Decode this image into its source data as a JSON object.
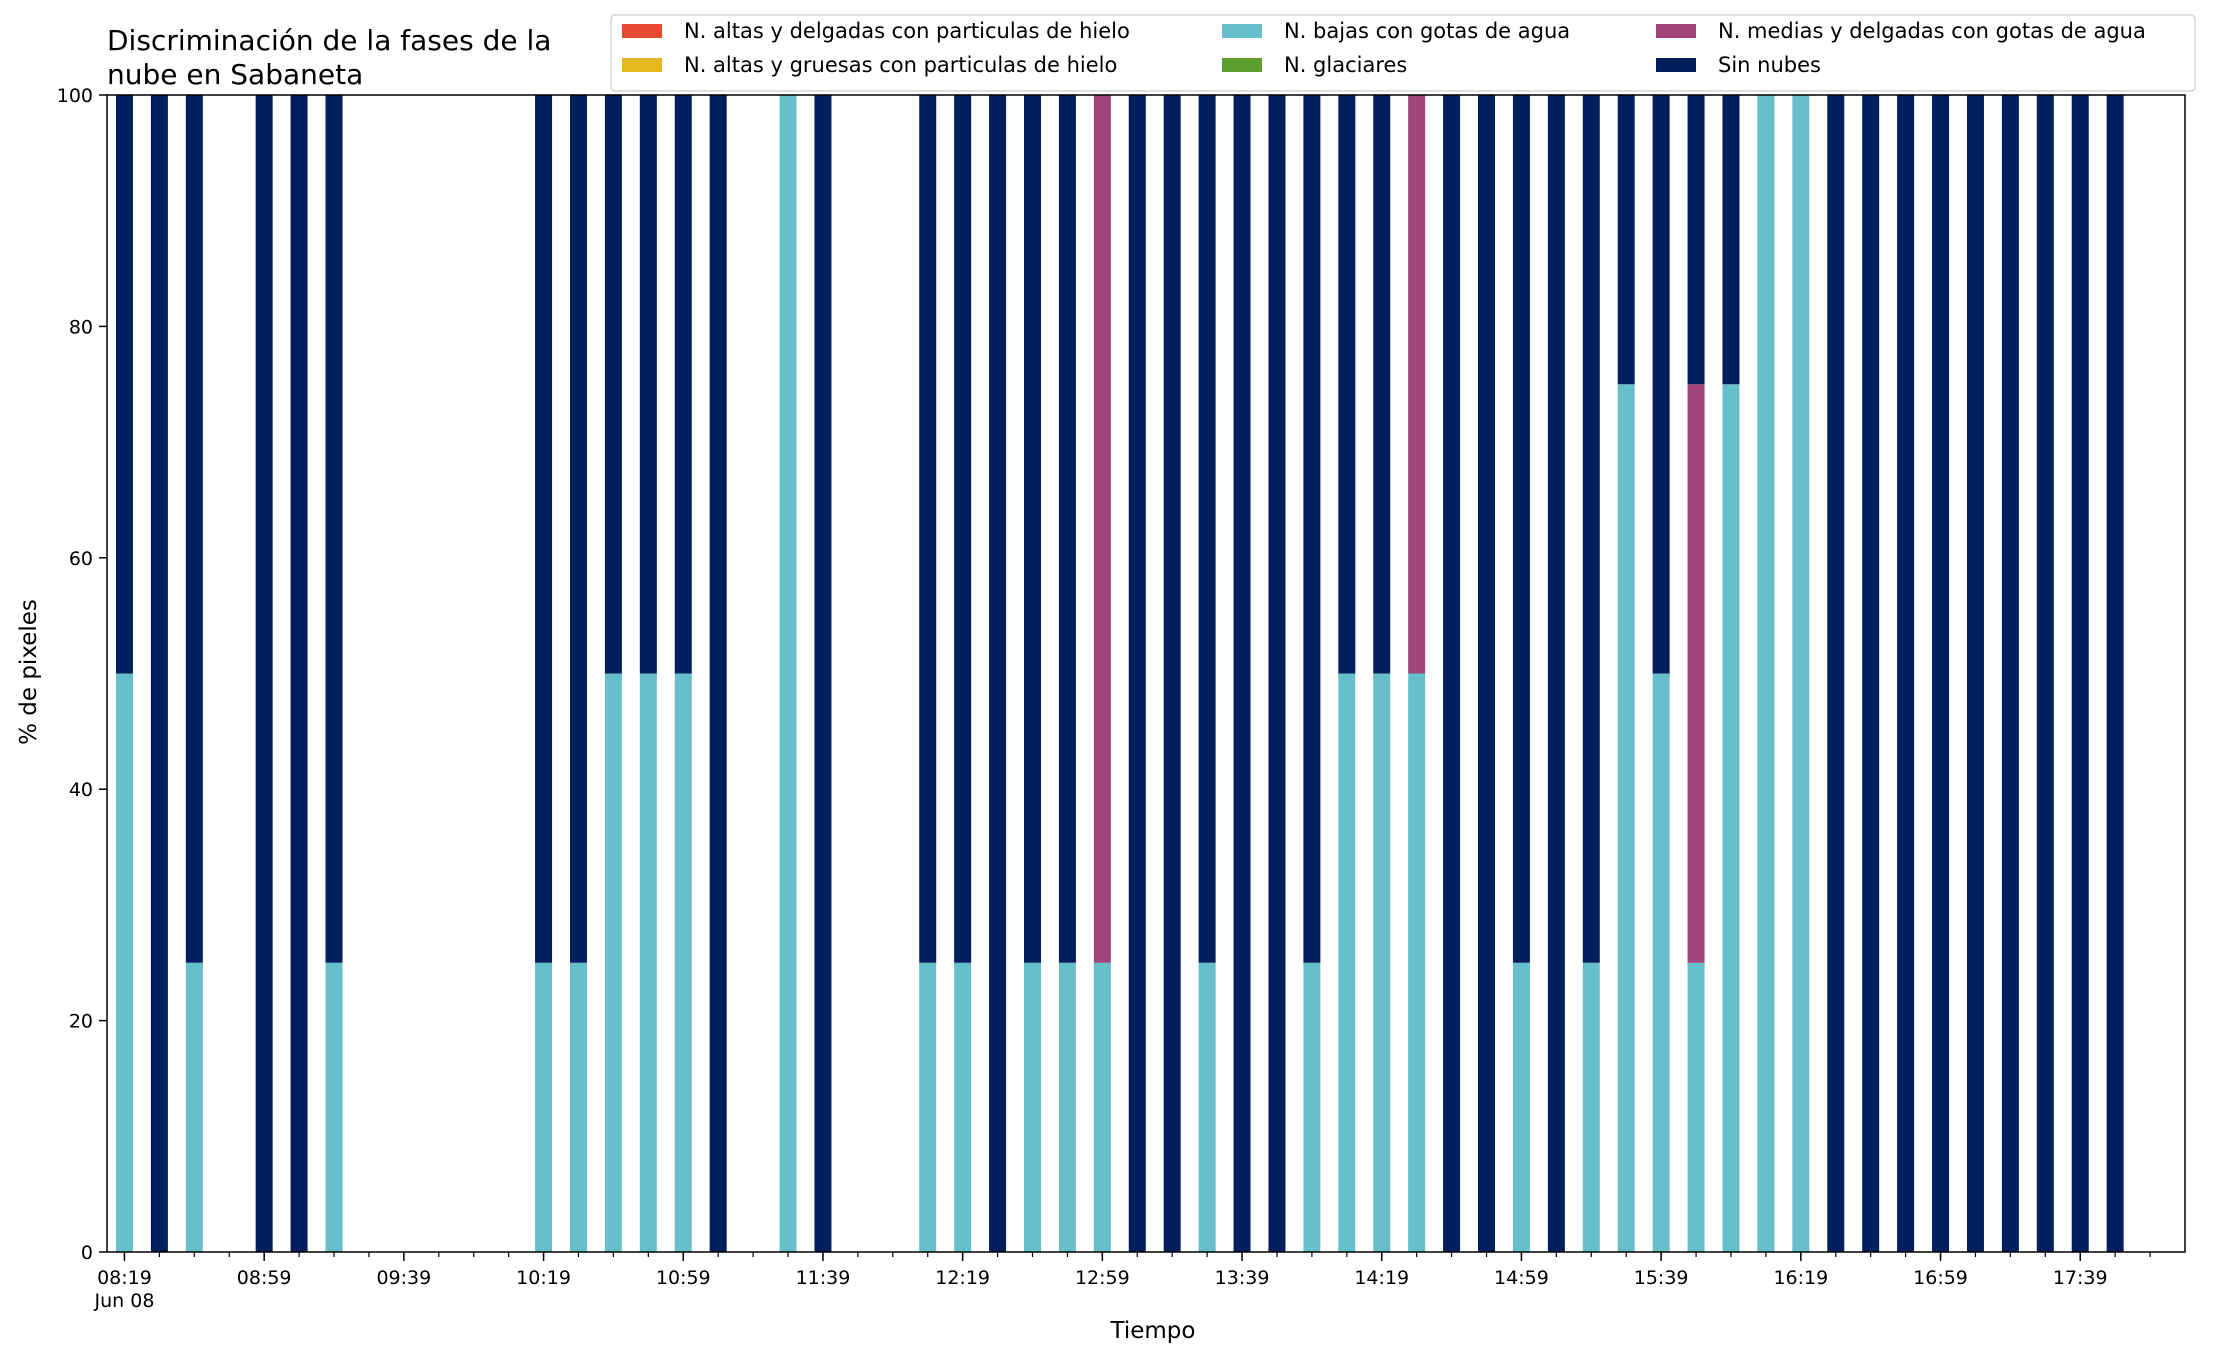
{
  "chart_data": {
    "type": "bar",
    "stacked": true,
    "title": "Discriminación de la fases de la\nnube en Sabaneta",
    "xlabel": "Tiempo",
    "ylabel": "% de pixeles",
    "ylim": [
      0,
      100
    ],
    "y_ticks": [
      0,
      20,
      40,
      60,
      80,
      100
    ],
    "grid": false,
    "legend_position": "top-right",
    "x_range": [
      "08:14",
      "18:09"
    ],
    "x_tick_labels": [
      {
        "time": "08:19",
        "label": "08:19",
        "sublabel": "Jun 08"
      },
      {
        "time": "08:59",
        "label": "08:59"
      },
      {
        "time": "09:39",
        "label": "09:39"
      },
      {
        "time": "10:19",
        "label": "10:19"
      },
      {
        "time": "10:59",
        "label": "10:59"
      },
      {
        "time": "11:39",
        "label": "11:39"
      },
      {
        "time": "12:19",
        "label": "12:19"
      },
      {
        "time": "12:59",
        "label": "12:59"
      },
      {
        "time": "13:39",
        "label": "13:39"
      },
      {
        "time": "14:19",
        "label": "14:19"
      },
      {
        "time": "14:59",
        "label": "14:59"
      },
      {
        "time": "15:39",
        "label": "15:39"
      },
      {
        "time": "16:19",
        "label": "16:19"
      },
      {
        "time": "16:59",
        "label": "16:59"
      },
      {
        "time": "17:39",
        "label": "17:39"
      }
    ],
    "x": [
      "08:19",
      "08:29",
      "08:39",
      "08:59",
      "09:09",
      "09:19",
      "10:19",
      "10:29",
      "10:39",
      "10:49",
      "10:59",
      "11:09",
      "11:29",
      "11:39",
      "12:09",
      "12:19",
      "12:29",
      "12:39",
      "12:49",
      "12:59",
      "13:09",
      "13:19",
      "13:29",
      "13:39",
      "13:49",
      "13:59",
      "14:09",
      "14:19",
      "14:29",
      "14:39",
      "14:49",
      "14:59",
      "15:09",
      "15:19",
      "15:29",
      "15:39",
      "15:49",
      "15:59",
      "16:09",
      "16:19",
      "16:29",
      "16:39",
      "16:49",
      "16:59",
      "17:09",
      "17:19",
      "17:29",
      "17:39",
      "17:49"
    ],
    "series": [
      {
        "name": "N. altas y delgadas con particulas de hielo",
        "color": "#e84a2f",
        "values": [
          0,
          0,
          0,
          0,
          0,
          0,
          0,
          0,
          0,
          0,
          0,
          0,
          0,
          0,
          0,
          0,
          0,
          0,
          0,
          0,
          0,
          0,
          0,
          0,
          0,
          0,
          0,
          0,
          0,
          0,
          0,
          0,
          0,
          0,
          0,
          0,
          0,
          0,
          0,
          0,
          0,
          0,
          0,
          0,
          0,
          0,
          0,
          0,
          0
        ]
      },
      {
        "name": "N. altas y gruesas con particulas de hielo",
        "color": "#e5b91e",
        "values": [
          0,
          0,
          0,
          0,
          0,
          0,
          0,
          0,
          0,
          0,
          0,
          0,
          0,
          0,
          0,
          0,
          0,
          0,
          0,
          0,
          0,
          0,
          0,
          0,
          0,
          0,
          0,
          0,
          0,
          0,
          0,
          0,
          0,
          0,
          0,
          0,
          0,
          0,
          0,
          0,
          0,
          0,
          0,
          0,
          0,
          0,
          0,
          0,
          0
        ]
      },
      {
        "name": "N. bajas con gotas de agua",
        "color": "#66bfca",
        "values": [
          50,
          0,
          25,
          0,
          0,
          25,
          25,
          25,
          50,
          50,
          50,
          0,
          100,
          0,
          25,
          25,
          0,
          25,
          25,
          25,
          0,
          0,
          25,
          0,
          0,
          25,
          50,
          50,
          50,
          0,
          0,
          25,
          0,
          25,
          75,
          50,
          25,
          75,
          100,
          100,
          0,
          0,
          0,
          0,
          0,
          0,
          0,
          0,
          0
        ]
      },
      {
        "name": "N. glaciares",
        "color": "#5d9e2f",
        "values": [
          0,
          0,
          0,
          0,
          0,
          0,
          0,
          0,
          0,
          0,
          0,
          0,
          0,
          0,
          0,
          0,
          0,
          0,
          0,
          0,
          0,
          0,
          0,
          0,
          0,
          0,
          0,
          0,
          0,
          0,
          0,
          0,
          0,
          0,
          0,
          0,
          0,
          0,
          0,
          0,
          0,
          0,
          0,
          0,
          0,
          0,
          0,
          0,
          0
        ]
      },
      {
        "name": "N. medias y delgadas con gotas de agua",
        "color": "#a0457a",
        "values": [
          0,
          0,
          0,
          0,
          0,
          0,
          0,
          0,
          0,
          0,
          0,
          0,
          0,
          0,
          0,
          0,
          0,
          0,
          0,
          75,
          0,
          0,
          0,
          0,
          0,
          0,
          0,
          0,
          50,
          0,
          0,
          0,
          0,
          0,
          0,
          0,
          50,
          0,
          0,
          0,
          0,
          0,
          0,
          0,
          0,
          0,
          0,
          0,
          0
        ]
      },
      {
        "name": "Sin nubes",
        "color": "#001f5c",
        "values": [
          50,
          100,
          75,
          100,
          100,
          75,
          75,
          75,
          50,
          50,
          50,
          100,
          0,
          100,
          75,
          75,
          100,
          75,
          75,
          0,
          100,
          100,
          75,
          100,
          100,
          75,
          50,
          50,
          0,
          100,
          100,
          75,
          100,
          75,
          25,
          50,
          25,
          25,
          0,
          0,
          100,
          100,
          100,
          100,
          100,
          100,
          100,
          100,
          100
        ]
      }
    ]
  }
}
